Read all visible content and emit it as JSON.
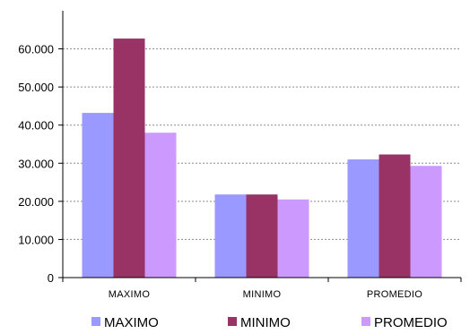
{
  "chart_data": {
    "type": "bar",
    "title": "",
    "xlabel": "",
    "ylabel": "",
    "categories": [
      "MAXIMO",
      "MINIMO",
      "PROMEDIO"
    ],
    "ylim": [
      0,
      70000
    ],
    "yticks": [
      0,
      10000,
      20000,
      30000,
      40000,
      50000,
      60000
    ],
    "ytick_labels": [
      "0",
      "10.000",
      "20.000",
      "30.000",
      "40.000",
      "50.000",
      "60.000"
    ],
    "grid": true,
    "legend_position": "bottom",
    "series": [
      {
        "name": "MAXIMO",
        "color": "#9999ff",
        "values": [
          43200,
          21800,
          31000
        ]
      },
      {
        "name": "MINIMO",
        "color": "#993366",
        "values": [
          62700,
          21800,
          32300
        ]
      },
      {
        "name": "PROMEDIO",
        "color": "#cc99ff",
        "values": [
          38000,
          20500,
          29300
        ]
      }
    ]
  }
}
